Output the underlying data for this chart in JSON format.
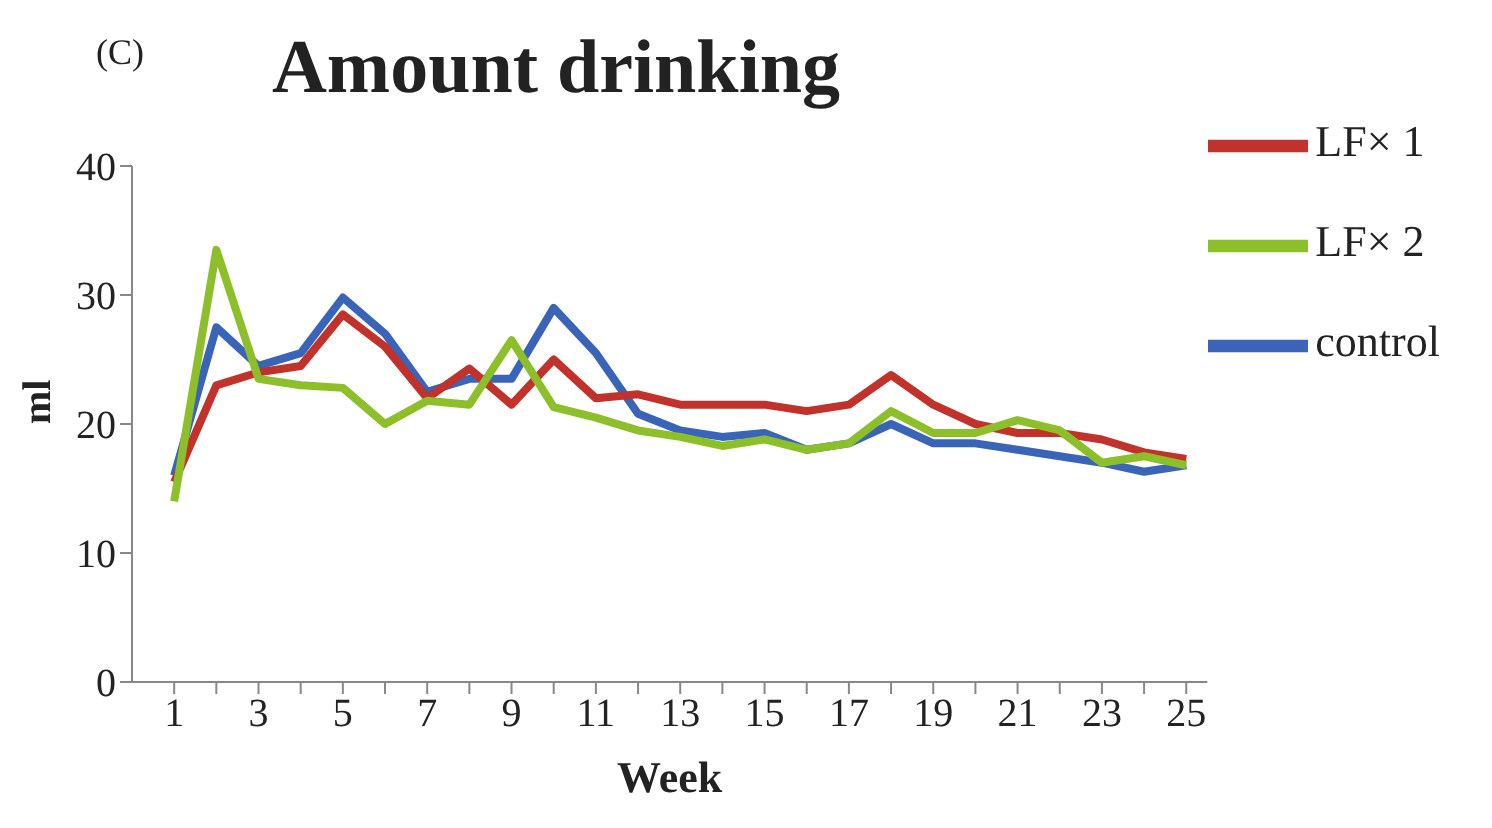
{
  "chart_data": {
    "type": "line",
    "title": "Amount drinking",
    "xlabel": "Week",
    "ylabel": "ml",
    "annotations": [
      "(C)"
    ],
    "x": [
      1,
      2,
      3,
      4,
      5,
      6,
      7,
      8,
      9,
      10,
      11,
      12,
      13,
      14,
      15,
      16,
      17,
      18,
      19,
      20,
      21,
      22,
      23,
      24,
      25
    ],
    "series": [
      {
        "name": "control",
        "color": "#3a64b8",
        "values": [
          16,
          27.5,
          24.5,
          25.5,
          29.8,
          27,
          22.5,
          23.5,
          23.5,
          29,
          25.5,
          20.8,
          19.5,
          19,
          19.3,
          18,
          18.5,
          20,
          18.5,
          18.5,
          18,
          17.5,
          17,
          16.3,
          16.8
        ]
      },
      {
        "name": "LF× 1",
        "color": "#c0322a",
        "values": [
          15.5,
          23,
          24,
          24.5,
          28.5,
          26,
          22,
          24.3,
          21.5,
          25,
          22,
          22.3,
          21.5,
          21.5,
          21.5,
          21,
          21.5,
          23.8,
          21.5,
          20,
          19.3,
          19.3,
          18.8,
          17.8,
          17.3
        ]
      },
      {
        "name": "LF× 2",
        "color": "#8cbf2a",
        "values": [
          14,
          33.5,
          23.5,
          23,
          22.8,
          20,
          21.8,
          21.5,
          26.5,
          21.3,
          20.5,
          19.5,
          19,
          18.3,
          18.8,
          18,
          18.5,
          21,
          19.3,
          19.3,
          20.3,
          19.5,
          17,
          17.5,
          16.8
        ]
      }
    ],
    "xlim": [
      0,
      25.5
    ],
    "xticks": [
      1,
      {
        "value": 2,
        "label": null
      },
      3,
      {
        "value": 4,
        "label": null
      },
      5,
      {
        "value": 6,
        "label": null
      },
      7,
      {
        "value": 8,
        "label": null
      },
      9,
      {
        "value": 10,
        "label": null
      },
      11,
      {
        "value": 12,
        "label": null
      },
      13,
      {
        "value": 14,
        "label": null
      },
      15,
      {
        "value": 16,
        "label": null
      },
      17,
      {
        "value": 18,
        "label": null
      },
      19,
      {
        "value": 20,
        "label": null
      },
      21,
      {
        "value": 22,
        "label": null
      },
      23,
      {
        "value": 24,
        "label": null
      },
      25
    ],
    "ylim": [
      0,
      40
    ],
    "yticks": [
      0,
      10,
      20,
      30,
      40
    ],
    "grid": false,
    "legend": "top right",
    "marker": "none",
    "line_style": "solid"
  }
}
